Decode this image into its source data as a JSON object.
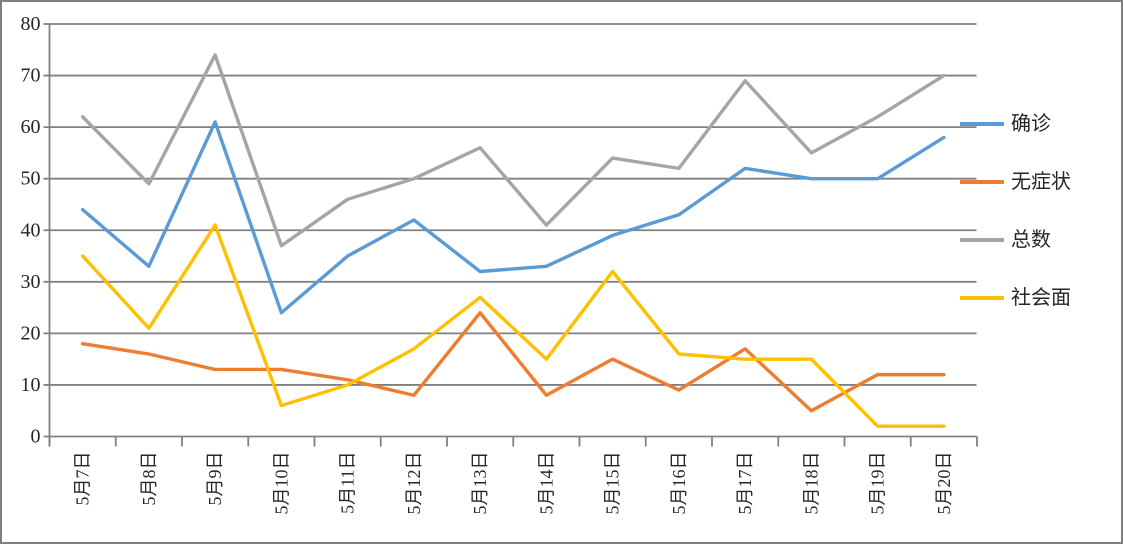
{
  "chart_data": {
    "type": "line",
    "title": "",
    "categories": [
      "5月7日",
      "5月8日",
      "5月9日",
      "5月10日",
      "5月11日",
      "5月12日",
      "5月13日",
      "5月14日",
      "5月15日",
      "5月16日",
      "5月17日",
      "5月18日",
      "5月19日",
      "5月20日"
    ],
    "series": [
      {
        "name": "确诊",
        "color": "#5B9BD5",
        "values": [
          44,
          33,
          61,
          24,
          35,
          42,
          32,
          33,
          39,
          43,
          52,
          50,
          50,
          58
        ]
      },
      {
        "name": "无症状",
        "color": "#ED7D31",
        "values": [
          18,
          16,
          13,
          13,
          11,
          8,
          24,
          8,
          15,
          9,
          17,
          5,
          12,
          12
        ]
      },
      {
        "name": "总数",
        "color": "#A5A5A5",
        "values": [
          62,
          49,
          74,
          37,
          46,
          50,
          56,
          41,
          54,
          52,
          69,
          55,
          62,
          70
        ]
      },
      {
        "name": "社会面",
        "color": "#FFC000",
        "values": [
          35,
          21,
          41,
          6,
          10,
          17,
          27,
          15,
          32,
          16,
          15,
          15,
          2,
          2
        ]
      }
    ],
    "xlabel": "",
    "ylabel": "",
    "ylim": [
      0,
      80
    ],
    "yticks": [
      0,
      10,
      20,
      30,
      40,
      50,
      60,
      70,
      80
    ],
    "grid": true,
    "legend_position": "right"
  },
  "style": {
    "gridline_color": "#808080",
    "axis_color": "#808080",
    "frame_color": "#7F7F7F",
    "text_color": "#262626",
    "background": "#FFFFFF"
  }
}
